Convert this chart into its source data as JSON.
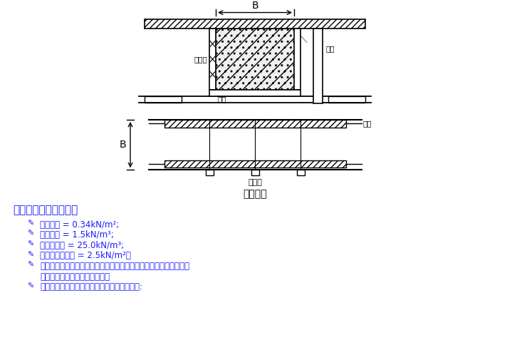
{
  "bg_color": "#ffffff",
  "title_diagram": "梁底模板",
  "label_B_top": "B",
  "label_B_side": "B",
  "label_jiaoheban": "胶合板",
  "label_gangguan": "钢管",
  "label_mufang_bottom": "木方",
  "label_mufang_side": "木方",
  "label_xiaohenggan": "小横杆",
  "section_title": "梁模板荷载标准值计算",
  "bullet_items": [
    "模板自重 = 0.34kN/m²;",
    "钢筋自重 = 1.5kN/m³;",
    "混凝土自重 = 25.0kN/m³;",
    "施工荷载标准值 = 2.5kN/m²。",
    "强度验算要考虑新浇混凝土侧压力和倾倒混凝土时产生的荷载；挠度",
    "验算只考虑新浇混凝土侧压力。",
    "新浇混凝土侧压力计算公式为下式中的较小值:"
  ],
  "bullet_items_indent": [
    0,
    0,
    0,
    0,
    0,
    1,
    0
  ],
  "text_color": "#1a1aff",
  "line_color": "#000000"
}
